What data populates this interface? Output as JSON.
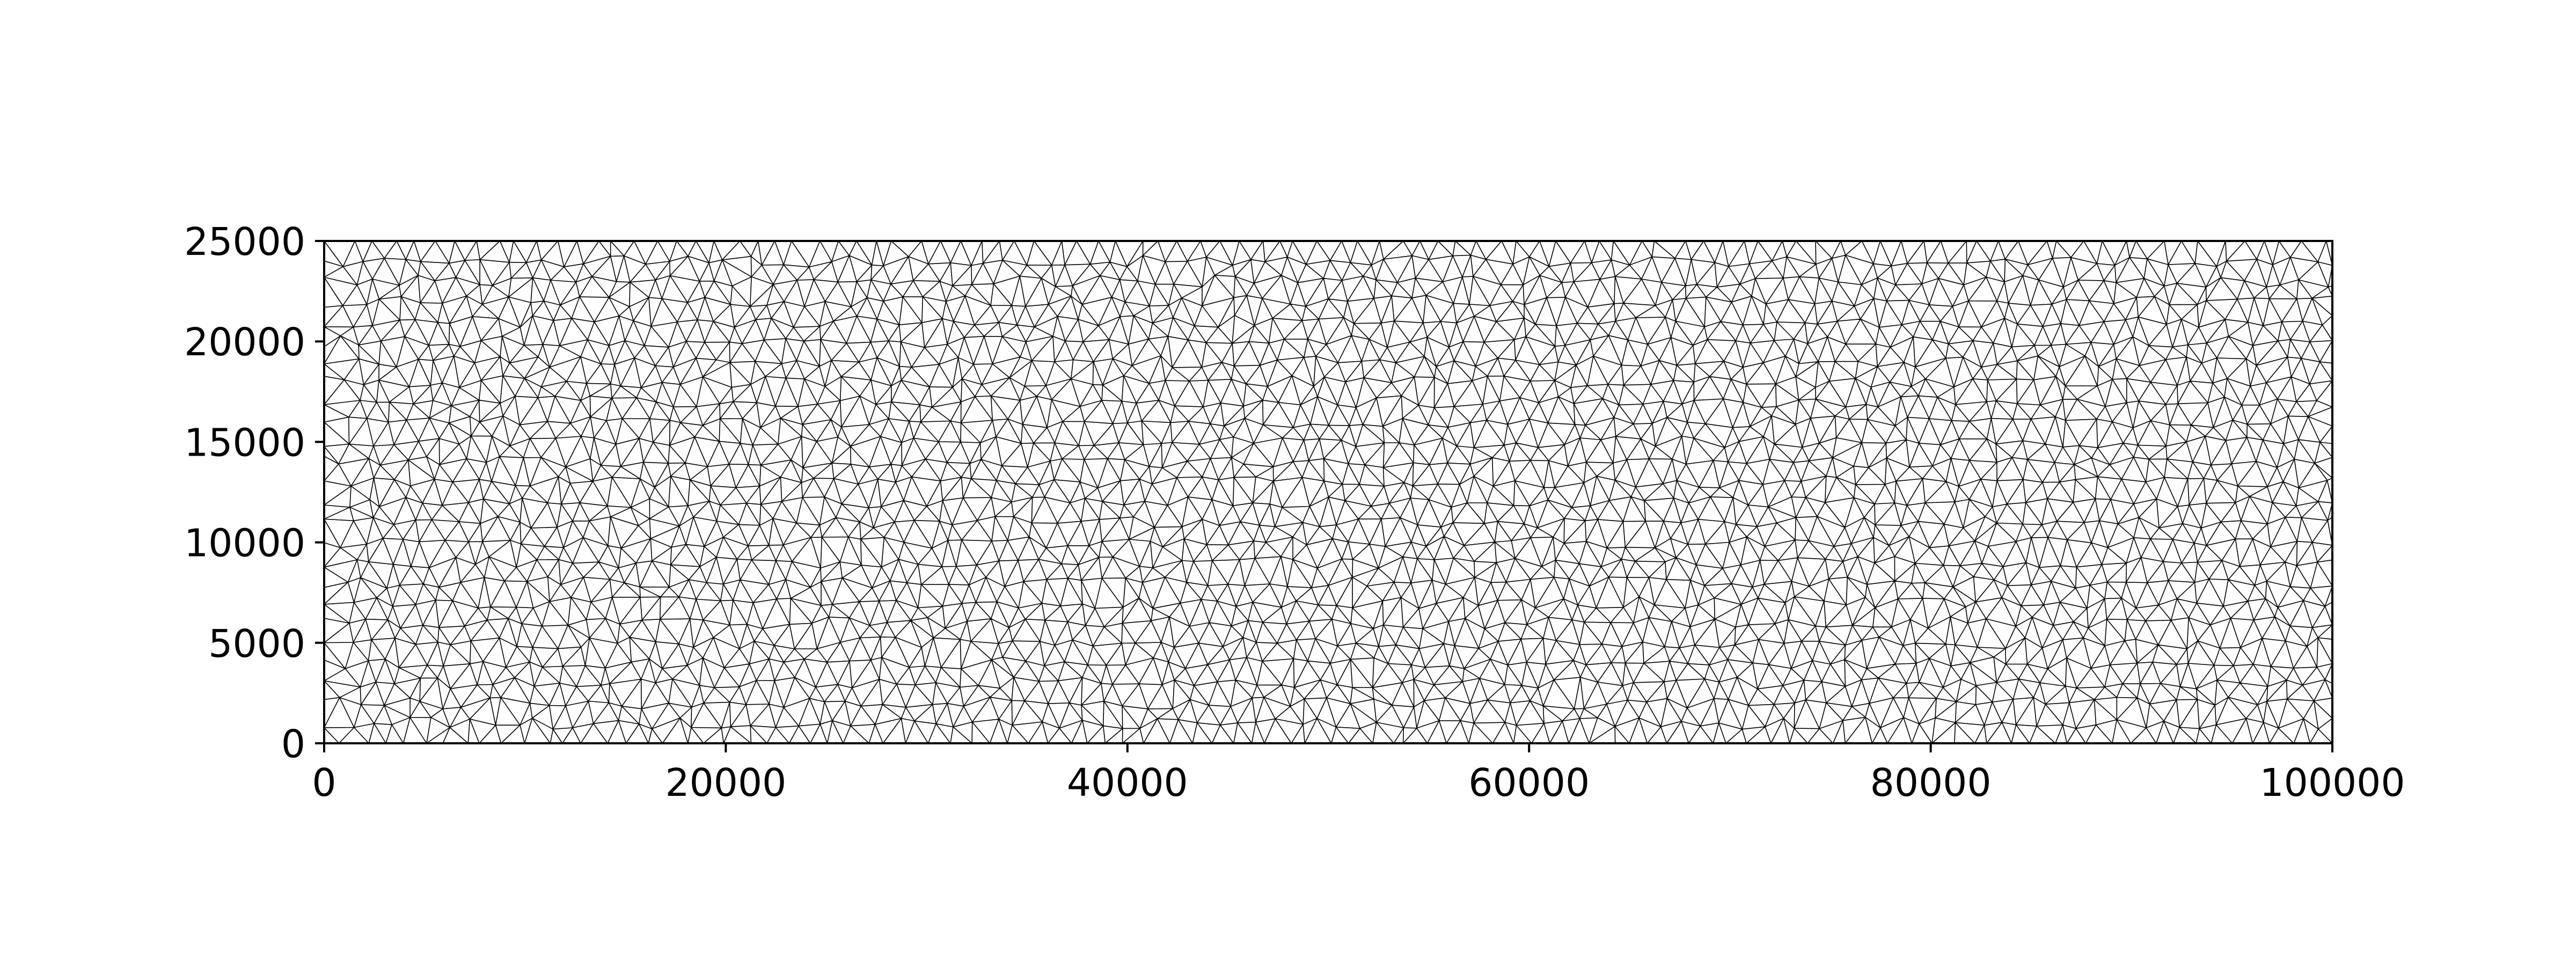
{
  "chart_data": {
    "type": "triangular-mesh",
    "title": "",
    "xlabel": "",
    "ylabel": "",
    "xlim": [
      0,
      100000
    ],
    "ylim": [
      0,
      25000
    ],
    "x_ticks": [
      {
        "value": 0,
        "label": "0"
      },
      {
        "value": 20000,
        "label": "20000"
      },
      {
        "value": 40000,
        "label": "40000"
      },
      {
        "value": 60000,
        "label": "60000"
      },
      {
        "value": 80000,
        "label": "80000"
      },
      {
        "value": 100000,
        "label": "100000"
      }
    ],
    "y_ticks": [
      {
        "value": 0,
        "label": "0"
      },
      {
        "value": 5000,
        "label": "5000"
      },
      {
        "value": 10000,
        "label": "10000"
      },
      {
        "value": 15000,
        "label": "15000"
      },
      {
        "value": 20000,
        "label": "20000"
      },
      {
        "value": 25000,
        "label": "25000"
      }
    ],
    "mesh": {
      "element_type": "triangle",
      "approx_element_size": 1000,
      "edge_color": "#000000"
    },
    "grid": false,
    "legend": "none"
  }
}
